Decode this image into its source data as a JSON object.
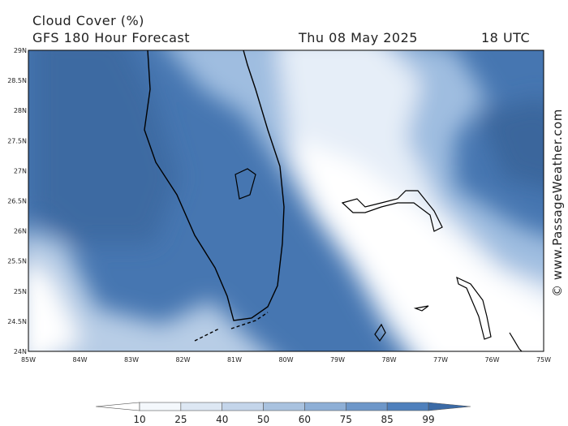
{
  "header": {
    "title": "Cloud Cover (%)",
    "subtitle": "GFS 180 Hour Forecast",
    "date": "Thu 08 May 2025",
    "time": "18 UTC"
  },
  "map": {
    "lat_labels": [
      "29N",
      "28.5N",
      "28N",
      "27.5N",
      "27N",
      "26.5N",
      "26N",
      "25.5N",
      "25N",
      "24.5N",
      "24N"
    ],
    "lon_labels": [
      "85W",
      "84W",
      "83W",
      "82W",
      "81W",
      "80W",
      "79W",
      "78W",
      "77W",
      "76W",
      "75W"
    ]
  },
  "colorbar": {
    "labels": [
      10,
      25,
      40,
      50,
      60,
      75,
      85,
      99
    ]
  },
  "watermark": "© www.PassageWeather.com"
}
